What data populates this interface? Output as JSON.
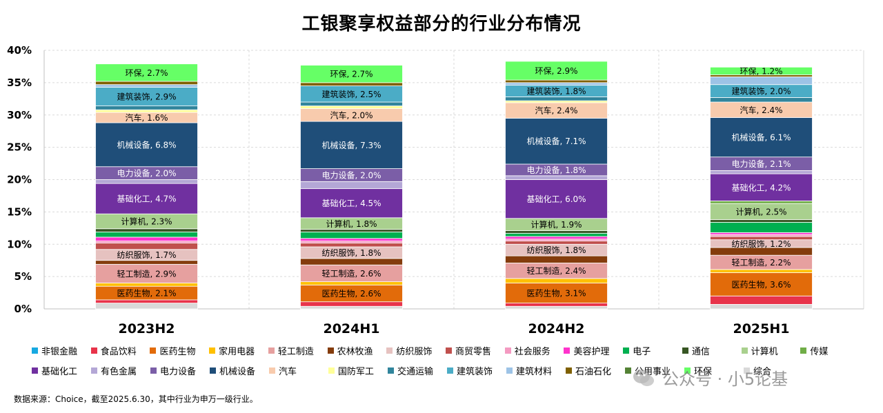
{
  "title": "工银聚享权益部分的行业分布情况",
  "source_note": "数据来源：Choice，截至2025.6.30，其中行业为申万一级行业。",
  "watermark": "公众号 · 小5论基",
  "colors": {
    "非银金融": "#17a9e1",
    "食品饮料": "#e8334a",
    "医药生物": "#e26b0a",
    "家用电器": "#ffc000",
    "轻工制造": "#e6a09f",
    "农林牧渔": "#843c0c",
    "纺织服饰": "#e6c2c0",
    "商贸零售": "#c0504d",
    "社会服务": "#f49ac1",
    "美容护理": "#ff33cc",
    "电子": "#00b050",
    "通信": "#375623",
    "计算机": "#a9d08e",
    "传媒": "#70ad47",
    "基础化工": "#7030a0",
    "有色金属": "#b4a7d6",
    "电力设备": "#7b5ea7",
    "机械设备": "#1f4e79",
    "汽车": "#f8cbad",
    "国防军工": "#ffff99",
    "交通运输": "#31859c",
    "建筑装饰": "#4bacc6",
    "建筑材料": "#9dc3e6",
    "石油石化": "#7f6000",
    "公用事业": "#548235",
    "环保": "#66ff66",
    "综合": "#d9d9d9"
  },
  "legend": [
    [
      "非银金融",
      "食品饮料",
      "医药生物",
      "家用电器",
      "轻工制造",
      "农林牧渔",
      "纺织服饰",
      "商贸零售",
      "社会服务",
      "美容护理",
      "电子",
      "通信",
      "计算机",
      "传媒"
    ],
    [
      "基础化工",
      "有色金属",
      "电力设备",
      "机械设备",
      "汽车",
      "国防军工",
      "交通运输",
      "建筑装饰",
      "建筑材料",
      "石油石化",
      "公用事业",
      "环保",
      "综合"
    ]
  ],
  "chart_data": {
    "type": "bar",
    "stacked": true,
    "title": "工银聚享权益部分的行业分布情况",
    "categories": [
      "2023H2",
      "2024H1",
      "2024H2",
      "2025H1"
    ],
    "ylim": [
      0,
      40
    ],
    "yticks": [
      "0%",
      "5%",
      "10%",
      "15%",
      "20%",
      "25%",
      "30%",
      "35%",
      "40%"
    ],
    "grid": true,
    "legend_position": "bottom",
    "label_series": [
      "医药生物",
      "轻工制造",
      "纺织服饰",
      "计算机",
      "基础化工",
      "电力设备",
      "机械设备",
      "汽车",
      "建筑装饰",
      "环保"
    ],
    "series": [
      {
        "name": "非银金融",
        "values": [
          0.0,
          0.0,
          0.0,
          0.0
        ]
      },
      {
        "name": "综合",
        "values": [
          0.9,
          0.4,
          0.4,
          0.7
        ]
      },
      {
        "name": "食品饮料",
        "values": [
          0.5,
          0.7,
          0.5,
          1.3
        ]
      },
      {
        "name": "医药生物",
        "values": [
          2.1,
          2.6,
          3.1,
          3.6
        ]
      },
      {
        "name": "家用电器",
        "values": [
          0.5,
          0.5,
          0.7,
          0.5
        ]
      },
      {
        "name": "轻工制造",
        "values": [
          2.9,
          2.6,
          2.4,
          2.2
        ]
      },
      {
        "name": "农林牧渔",
        "values": [
          0.6,
          1.0,
          1.1,
          1.2
        ]
      },
      {
        "name": "纺织服饰",
        "values": [
          1.7,
          1.8,
          1.8,
          1.2
        ]
      },
      {
        "name": "商贸零售",
        "values": [
          1.0,
          0.6,
          0.5,
          0.5
        ]
      },
      {
        "name": "社会服务",
        "values": [
          0.3,
          0.3,
          0.3,
          0.3
        ]
      },
      {
        "name": "美容护理",
        "values": [
          0.6,
          0.4,
          0.4,
          0.3
        ]
      },
      {
        "name": "电子",
        "values": [
          0.8,
          1.0,
          0.5,
          1.6
        ]
      },
      {
        "name": "通信",
        "values": [
          0.5,
          0.4,
          0.4,
          0.4
        ]
      },
      {
        "name": "计算机",
        "values": [
          2.3,
          1.8,
          1.9,
          2.5
        ]
      },
      {
        "name": "传媒",
        "values": [
          0.0,
          0.0,
          0.0,
          0.4
        ]
      },
      {
        "name": "基础化工",
        "values": [
          4.7,
          4.5,
          6.0,
          4.2
        ]
      },
      {
        "name": "有色金属",
        "values": [
          0.6,
          1.1,
          0.6,
          0.5
        ]
      },
      {
        "name": "电力设备",
        "values": [
          2.0,
          2.0,
          1.8,
          2.1
        ]
      },
      {
        "name": "机械设备",
        "values": [
          6.8,
          7.3,
          7.1,
          6.1
        ]
      },
      {
        "name": "汽车",
        "values": [
          1.6,
          2.0,
          2.4,
          2.4
        ]
      },
      {
        "name": "国防军工",
        "values": [
          0.4,
          0.4,
          0.3,
          0.0
        ]
      },
      {
        "name": "交通运输",
        "values": [
          0.6,
          0.6,
          0.6,
          0.7
        ]
      },
      {
        "name": "建筑装饰",
        "values": [
          2.9,
          2.5,
          1.8,
          2.0
        ]
      },
      {
        "name": "建筑材料",
        "values": [
          0.4,
          0.0,
          0.4,
          1.2
        ]
      },
      {
        "name": "石油石化",
        "values": [
          0.5,
          0.5,
          0.4,
          0.3
        ]
      },
      {
        "name": "公用事业",
        "values": [
          0.0,
          0.0,
          0.0,
          0.0
        ]
      },
      {
        "name": "环保",
        "values": [
          2.7,
          2.7,
          2.9,
          1.2
        ]
      }
    ]
  }
}
